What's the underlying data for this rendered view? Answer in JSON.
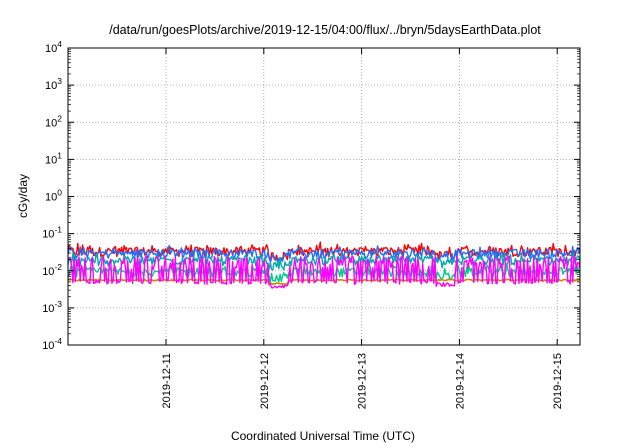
{
  "chart_data": {
    "type": "line",
    "title": "/data/run/goesPlots/archive/2019-12-15/04:00/flux/../bryn/5daysEarthData.plot",
    "xlabel": "Coordinated Universal Time (UTC)",
    "ylabel": "cGy/day",
    "yscale": "log",
    "ylim_exponents": [
      -4,
      4
    ],
    "y_ticks": [
      {
        "base": "10",
        "exp": "4"
      },
      {
        "base": "10",
        "exp": "3"
      },
      {
        "base": "10",
        "exp": "2"
      },
      {
        "base": "10",
        "exp": "1"
      },
      {
        "base": "10",
        "exp": "0"
      },
      {
        "base": "10",
        "exp": "-1"
      },
      {
        "base": "10",
        "exp": "-2"
      },
      {
        "base": "10",
        "exp": "-3"
      },
      {
        "base": "10",
        "exp": "-4"
      }
    ],
    "x_range": [
      "2019-12-10 04:00",
      "2019-12-15 04:00"
    ],
    "x_ticks": [
      "2019-12-11",
      "2019-12-12",
      "2019-12-13",
      "2019-12-14",
      "2019-12-15"
    ],
    "grid": true,
    "series": [
      {
        "color": "#ff0000",
        "pattern": "noisy",
        "base": 0.032,
        "spread": 0.018,
        "dips": [
          [
            2.05,
            2.25,
            0.024
          ],
          [
            3.75,
            3.95,
            0.025
          ]
        ]
      },
      {
        "color": "#1e6fff",
        "pattern": "noisy",
        "base": 0.028,
        "spread": 0.012,
        "dips": [
          [
            2.05,
            2.25,
            0.021
          ],
          [
            3.75,
            3.95,
            0.022
          ]
        ]
      },
      {
        "color": "#00aaaa",
        "pattern": "noisy",
        "base": 0.018,
        "spread": 0.006,
        "dips": [
          [
            2.05,
            2.25,
            0.013
          ],
          [
            3.75,
            3.95,
            0.015
          ]
        ]
      },
      {
        "color": "#00cc88",
        "pattern": "noisy",
        "base": 0.009,
        "spread": 0.004,
        "dips": [
          [
            2.05,
            2.25,
            0.006
          ],
          [
            3.75,
            3.95,
            0.007
          ]
        ]
      },
      {
        "color": "#cc8800",
        "pattern": "smooth",
        "base": 0.0056,
        "spread": 0.0004,
        "dips": [
          [
            2.05,
            2.25,
            0.0045
          ]
        ]
      },
      {
        "color": "#ff00ff",
        "pattern": "spiky",
        "base": 0.0048,
        "spread": 0.02,
        "dips": [
          [
            2.05,
            2.25,
            0.0038
          ],
          [
            3.75,
            3.95,
            0.0042
          ]
        ]
      }
    ]
  }
}
